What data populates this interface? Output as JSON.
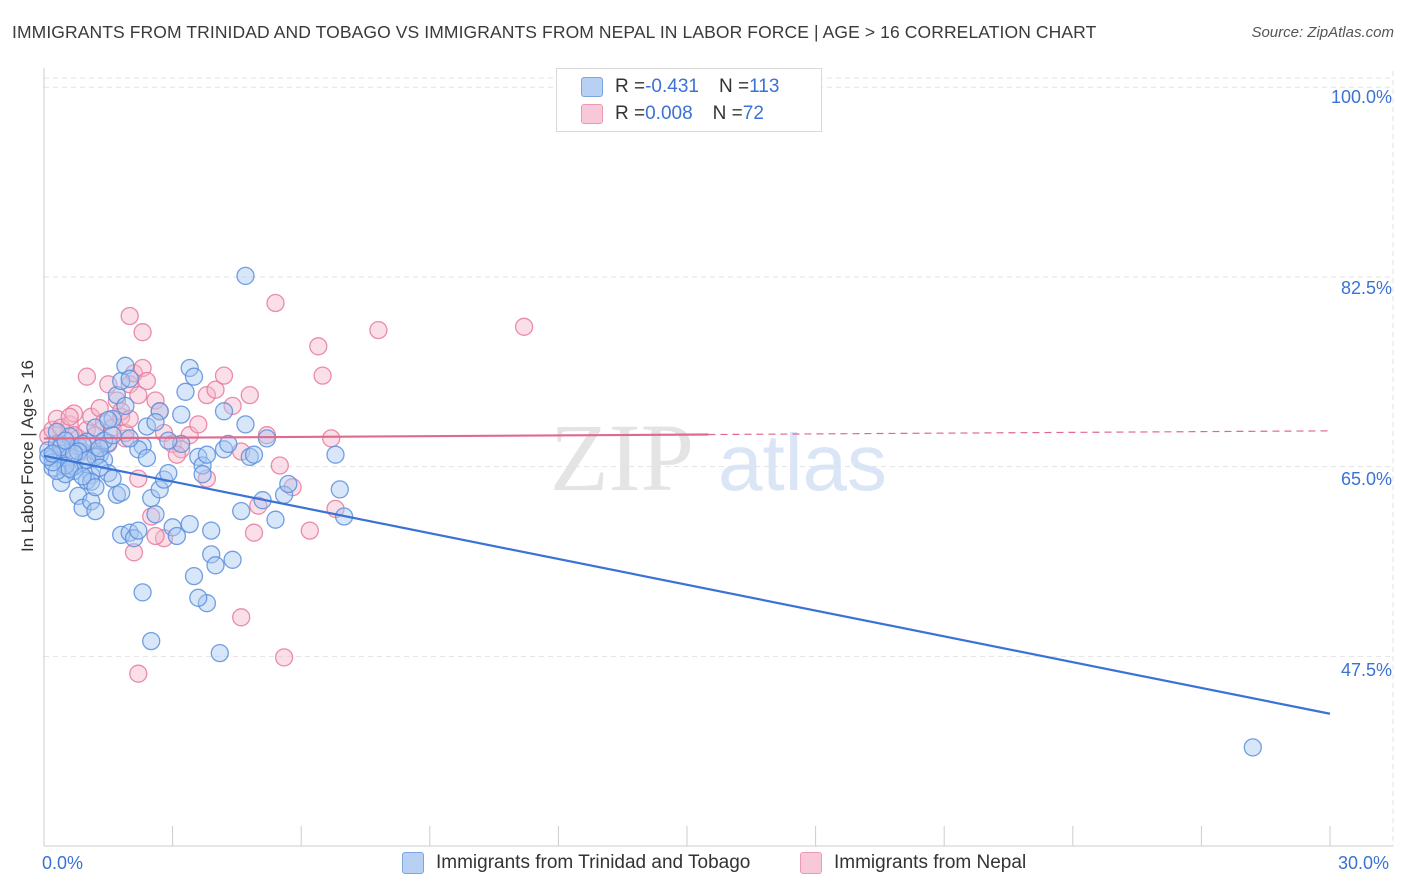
{
  "title": "IMMIGRANTS FROM TRINIDAD AND TOBAGO VS IMMIGRANTS FROM NEPAL IN LABOR FORCE | AGE > 16 CORRELATION CHART",
  "source": "Source: ZipAtlas.com",
  "watermark": {
    "zip": "ZIP",
    "atlas": "atlas"
  },
  "legend": {
    "series1": {
      "r_label": "R = ",
      "r_value": "-0.431",
      "n_label": "N = ",
      "n_value": "113"
    },
    "series2": {
      "r_label": "R = ",
      "r_value": "0.008",
      "n_label": "N = ",
      "n_value": "72"
    }
  },
  "colors": {
    "blue_fill": "#a9c8f2",
    "blue_stroke": "#5a8fdc",
    "blue_line": "#3a72d6",
    "pink_fill": "#f5b8cc",
    "pink_stroke": "#e67a9c",
    "pink_line": "#e06a8e",
    "tick_text": "#3a72d6",
    "grid": "#e3e3e3"
  },
  "chart_data": {
    "type": "scatter",
    "title": "IMMIGRANTS FROM TRINIDAD AND TOBAGO VS IMMIGRANTS FROM NEPAL IN LABOR FORCE | AGE > 16 CORRELATION CHART",
    "xlabel": "",
    "ylabel": "In Labor Force | Age > 16",
    "xlim": [
      0,
      30
    ],
    "ylim": [
      30,
      101.5
    ],
    "x_tick_labels": [
      "0.0%",
      "30.0%"
    ],
    "y_ticks": [
      47.5,
      65.0,
      82.5,
      100.0
    ],
    "y_tick_labels": [
      "47.5%",
      "65.0%",
      "82.5%",
      "100.0%"
    ],
    "grid": true,
    "legend_position": "top-center",
    "series": [
      {
        "name": "Immigrants from Trinidad and Tobago",
        "color": "#5a8fdc",
        "trend": {
          "x": [
            0,
            30
          ],
          "y": [
            66.0,
            42.2
          ],
          "dashed_from": null
        },
        "points": [
          [
            0.1,
            66.5
          ],
          [
            0.2,
            65.8
          ],
          [
            0.3,
            67.1
          ],
          [
            0.2,
            64.9
          ],
          [
            0.4,
            66.2
          ],
          [
            0.5,
            65.1
          ],
          [
            0.6,
            67.8
          ],
          [
            0.7,
            64.6
          ],
          [
            0.3,
            68.2
          ],
          [
            0.8,
            66.9
          ],
          [
            0.9,
            65.4
          ],
          [
            1.0,
            67.3
          ],
          [
            1.1,
            64.2
          ],
          [
            0.4,
            63.5
          ],
          [
            0.6,
            65.9
          ],
          [
            1.2,
            68.6
          ],
          [
            1.3,
            66.1
          ],
          [
            0.5,
            64.3
          ],
          [
            0.8,
            62.3
          ],
          [
            0.9,
            61.2
          ],
          [
            1.0,
            63.7
          ],
          [
            1.1,
            61.8
          ],
          [
            1.2,
            60.9
          ],
          [
            1.4,
            65.6
          ],
          [
            1.5,
            67.2
          ],
          [
            1.6,
            69.4
          ],
          [
            0.7,
            65.0
          ],
          [
            1.7,
            71.6
          ],
          [
            1.8,
            72.9
          ],
          [
            1.9,
            74.3
          ],
          [
            2.0,
            73.1
          ],
          [
            1.5,
            64.4
          ],
          [
            1.6,
            63.9
          ],
          [
            1.7,
            62.4
          ],
          [
            1.8,
            58.7
          ],
          [
            2.0,
            58.9
          ],
          [
            2.1,
            58.4
          ],
          [
            2.3,
            66.9
          ],
          [
            2.4,
            68.7
          ],
          [
            2.5,
            62.1
          ],
          [
            2.6,
            60.6
          ],
          [
            2.7,
            62.9
          ],
          [
            2.8,
            63.8
          ],
          [
            2.9,
            64.4
          ],
          [
            3.0,
            59.4
          ],
          [
            3.1,
            58.6
          ],
          [
            3.2,
            69.8
          ],
          [
            3.3,
            71.9
          ],
          [
            3.4,
            74.1
          ],
          [
            3.5,
            73.3
          ],
          [
            3.6,
            65.9
          ],
          [
            3.7,
            65.1
          ],
          [
            3.8,
            66.1
          ],
          [
            3.9,
            56.9
          ],
          [
            4.0,
            55.9
          ],
          [
            2.5,
            48.9
          ],
          [
            3.8,
            52.4
          ],
          [
            4.1,
            47.8
          ],
          [
            4.4,
            56.4
          ],
          [
            3.5,
            54.9
          ],
          [
            4.6,
            60.9
          ],
          [
            4.8,
            65.9
          ],
          [
            5.1,
            61.9
          ],
          [
            5.4,
            60.1
          ],
          [
            5.6,
            62.4
          ],
          [
            4.7,
            68.9
          ],
          [
            4.2,
            70.1
          ],
          [
            2.3,
            53.4
          ],
          [
            2.2,
            66.6
          ],
          [
            1.9,
            70.6
          ],
          [
            1.2,
            65.9
          ],
          [
            0.9,
            67.1
          ],
          [
            0.5,
            65.1
          ],
          [
            0.3,
            64.6
          ],
          [
            0.2,
            65.4
          ],
          [
            0.1,
            65.9
          ],
          [
            0.4,
            66.8
          ],
          [
            0.6,
            64.8
          ],
          [
            0.8,
            66.4
          ],
          [
            1.0,
            65.6
          ],
          [
            1.4,
            67.4
          ],
          [
            1.3,
            64.9
          ],
          [
            1.1,
            63.6
          ],
          [
            2.7,
            70.1
          ],
          [
            3.2,
            67.1
          ],
          [
            4.2,
            66.6
          ],
          [
            4.9,
            66.1
          ],
          [
            5.7,
            63.4
          ],
          [
            6.8,
            66.1
          ],
          [
            6.9,
            62.9
          ],
          [
            7.0,
            60.4
          ],
          [
            4.7,
            82.6
          ],
          [
            2.9,
            67.4
          ],
          [
            2.4,
            65.8
          ],
          [
            1.6,
            67.9
          ],
          [
            0.7,
            66.2
          ],
          [
            0.9,
            64.1
          ],
          [
            1.2,
            63.1
          ],
          [
            1.8,
            62.6
          ],
          [
            2.2,
            59.1
          ],
          [
            3.7,
            64.3
          ],
          [
            3.4,
            59.7
          ],
          [
            3.9,
            59.1
          ],
          [
            4.3,
            67.1
          ],
          [
            5.2,
            67.6
          ],
          [
            2.6,
            69.1
          ],
          [
            1.5,
            69.3
          ],
          [
            2.0,
            67.6
          ],
          [
            3.6,
            52.9
          ],
          [
            0.5,
            67.4
          ],
          [
            0.2,
            66.2
          ],
          [
            28.2,
            39.1
          ],
          [
            1.3,
            66.7
          ]
        ]
      },
      {
        "name": "Immigrants from Nepal",
        "color": "#e67a9c",
        "trend": {
          "x": [
            0,
            30
          ],
          "y": [
            67.6,
            68.3
          ],
          "dashed_from": 15.5
        },
        "points": [
          [
            0.1,
            67.8
          ],
          [
            0.2,
            68.4
          ],
          [
            0.3,
            69.4
          ],
          [
            0.4,
            67.1
          ],
          [
            0.5,
            66.6
          ],
          [
            0.6,
            68.9
          ],
          [
            0.7,
            69.9
          ],
          [
            0.8,
            67.6
          ],
          [
            0.9,
            66.4
          ],
          [
            1.0,
            68.4
          ],
          [
            1.1,
            69.6
          ],
          [
            1.2,
            67.9
          ],
          [
            1.3,
            70.4
          ],
          [
            1.4,
            69.1
          ],
          [
            1.5,
            67.1
          ],
          [
            1.6,
            68.6
          ],
          [
            1.7,
            71.1
          ],
          [
            1.8,
            69.6
          ],
          [
            1.9,
            67.6
          ],
          [
            2.0,
            72.6
          ],
          [
            2.1,
            73.6
          ],
          [
            2.2,
            71.6
          ],
          [
            2.3,
            74.1
          ],
          [
            2.4,
            72.9
          ],
          [
            2.6,
            71.1
          ],
          [
            2.7,
            70.1
          ],
          [
            2.8,
            68.1
          ],
          [
            3.0,
            67.1
          ],
          [
            3.2,
            66.6
          ],
          [
            3.4,
            67.9
          ],
          [
            3.6,
            68.9
          ],
          [
            3.8,
            71.6
          ],
          [
            4.0,
            72.1
          ],
          [
            4.2,
            73.4
          ],
          [
            4.4,
            70.6
          ],
          [
            4.6,
            66.4
          ],
          [
            4.8,
            71.6
          ],
          [
            5.0,
            61.4
          ],
          [
            5.2,
            67.9
          ],
          [
            5.5,
            65.1
          ],
          [
            5.8,
            63.1
          ],
          [
            6.2,
            59.1
          ],
          [
            6.4,
            76.1
          ],
          [
            6.5,
            73.4
          ],
          [
            6.7,
            67.6
          ],
          [
            6.8,
            61.1
          ],
          [
            7.8,
            77.6
          ],
          [
            11.2,
            77.9
          ],
          [
            5.4,
            80.1
          ],
          [
            2.0,
            78.9
          ],
          [
            2.3,
            77.4
          ],
          [
            1.5,
            72.6
          ],
          [
            1.0,
            73.3
          ],
          [
            2.2,
            63.9
          ],
          [
            2.5,
            60.4
          ],
          [
            3.8,
            63.9
          ],
          [
            4.6,
            51.1
          ],
          [
            4.9,
            58.9
          ],
          [
            5.6,
            47.4
          ],
          [
            2.1,
            57.1
          ],
          [
            2.2,
            45.9
          ],
          [
            2.8,
            58.4
          ],
          [
            3.1,
            66.1
          ],
          [
            1.9,
            68.1
          ],
          [
            1.2,
            66.4
          ],
          [
            0.7,
            67.9
          ],
          [
            0.4,
            68.6
          ],
          [
            0.2,
            66.1
          ],
          [
            0.6,
            69.6
          ],
          [
            1.8,
            70.1
          ],
          [
            2.6,
            58.6
          ],
          [
            2.0,
            69.4
          ]
        ]
      }
    ]
  }
}
